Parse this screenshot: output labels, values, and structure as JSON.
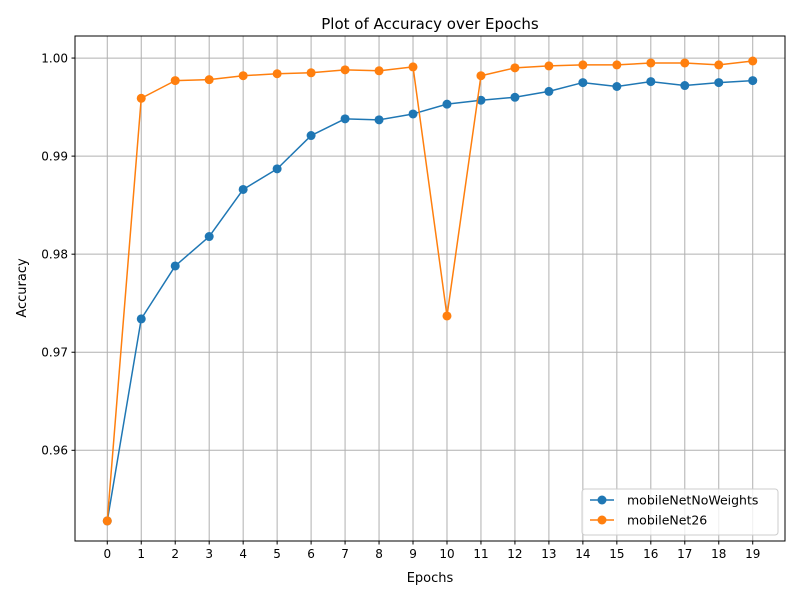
{
  "chart_data": {
    "type": "line",
    "title": "Plot of Accuracy over Epochs",
    "xlabel": "Epochs",
    "ylabel": "Accuracy",
    "x": [
      0,
      1,
      2,
      3,
      4,
      5,
      6,
      7,
      8,
      9,
      10,
      11,
      12,
      13,
      14,
      15,
      16,
      17,
      18,
      19
    ],
    "x_ticks": [
      0,
      1,
      2,
      3,
      4,
      5,
      6,
      7,
      8,
      9,
      10,
      11,
      12,
      13,
      14,
      15,
      16,
      17,
      18,
      19
    ],
    "y_ticks": [
      0.96,
      0.97,
      0.98,
      0.99,
      1.0
    ],
    "y_tick_labels": [
      "0.96",
      "0.97",
      "0.98",
      "0.99",
      "1.00"
    ],
    "xlim": [
      -0.95,
      19.95
    ],
    "ylim": [
      0.95075,
      1.00225
    ],
    "grid": true,
    "legend_position": "lower right",
    "series": [
      {
        "name": "mobileNetNoWeights",
        "color": "#1f77b4",
        "marker": "circle",
        "values": [
          0.9528,
          0.9734,
          0.9788,
          0.9818,
          0.9866,
          0.9887,
          0.9921,
          0.9938,
          0.9937,
          0.9943,
          0.9953,
          0.9957,
          0.996,
          0.9966,
          0.9975,
          0.9971,
          0.9976,
          0.9972,
          0.9975,
          0.9977
        ]
      },
      {
        "name": "mobileNet26",
        "color": "#ff7f0e",
        "marker": "circle",
        "values": [
          0.9528,
          0.9959,
          0.9977,
          0.9978,
          0.9982,
          0.9984,
          0.9985,
          0.9988,
          0.9987,
          0.9991,
          0.9737,
          0.9982,
          0.999,
          0.9992,
          0.9993,
          0.9993,
          0.9995,
          0.9995,
          0.9993,
          0.9997
        ]
      }
    ]
  }
}
